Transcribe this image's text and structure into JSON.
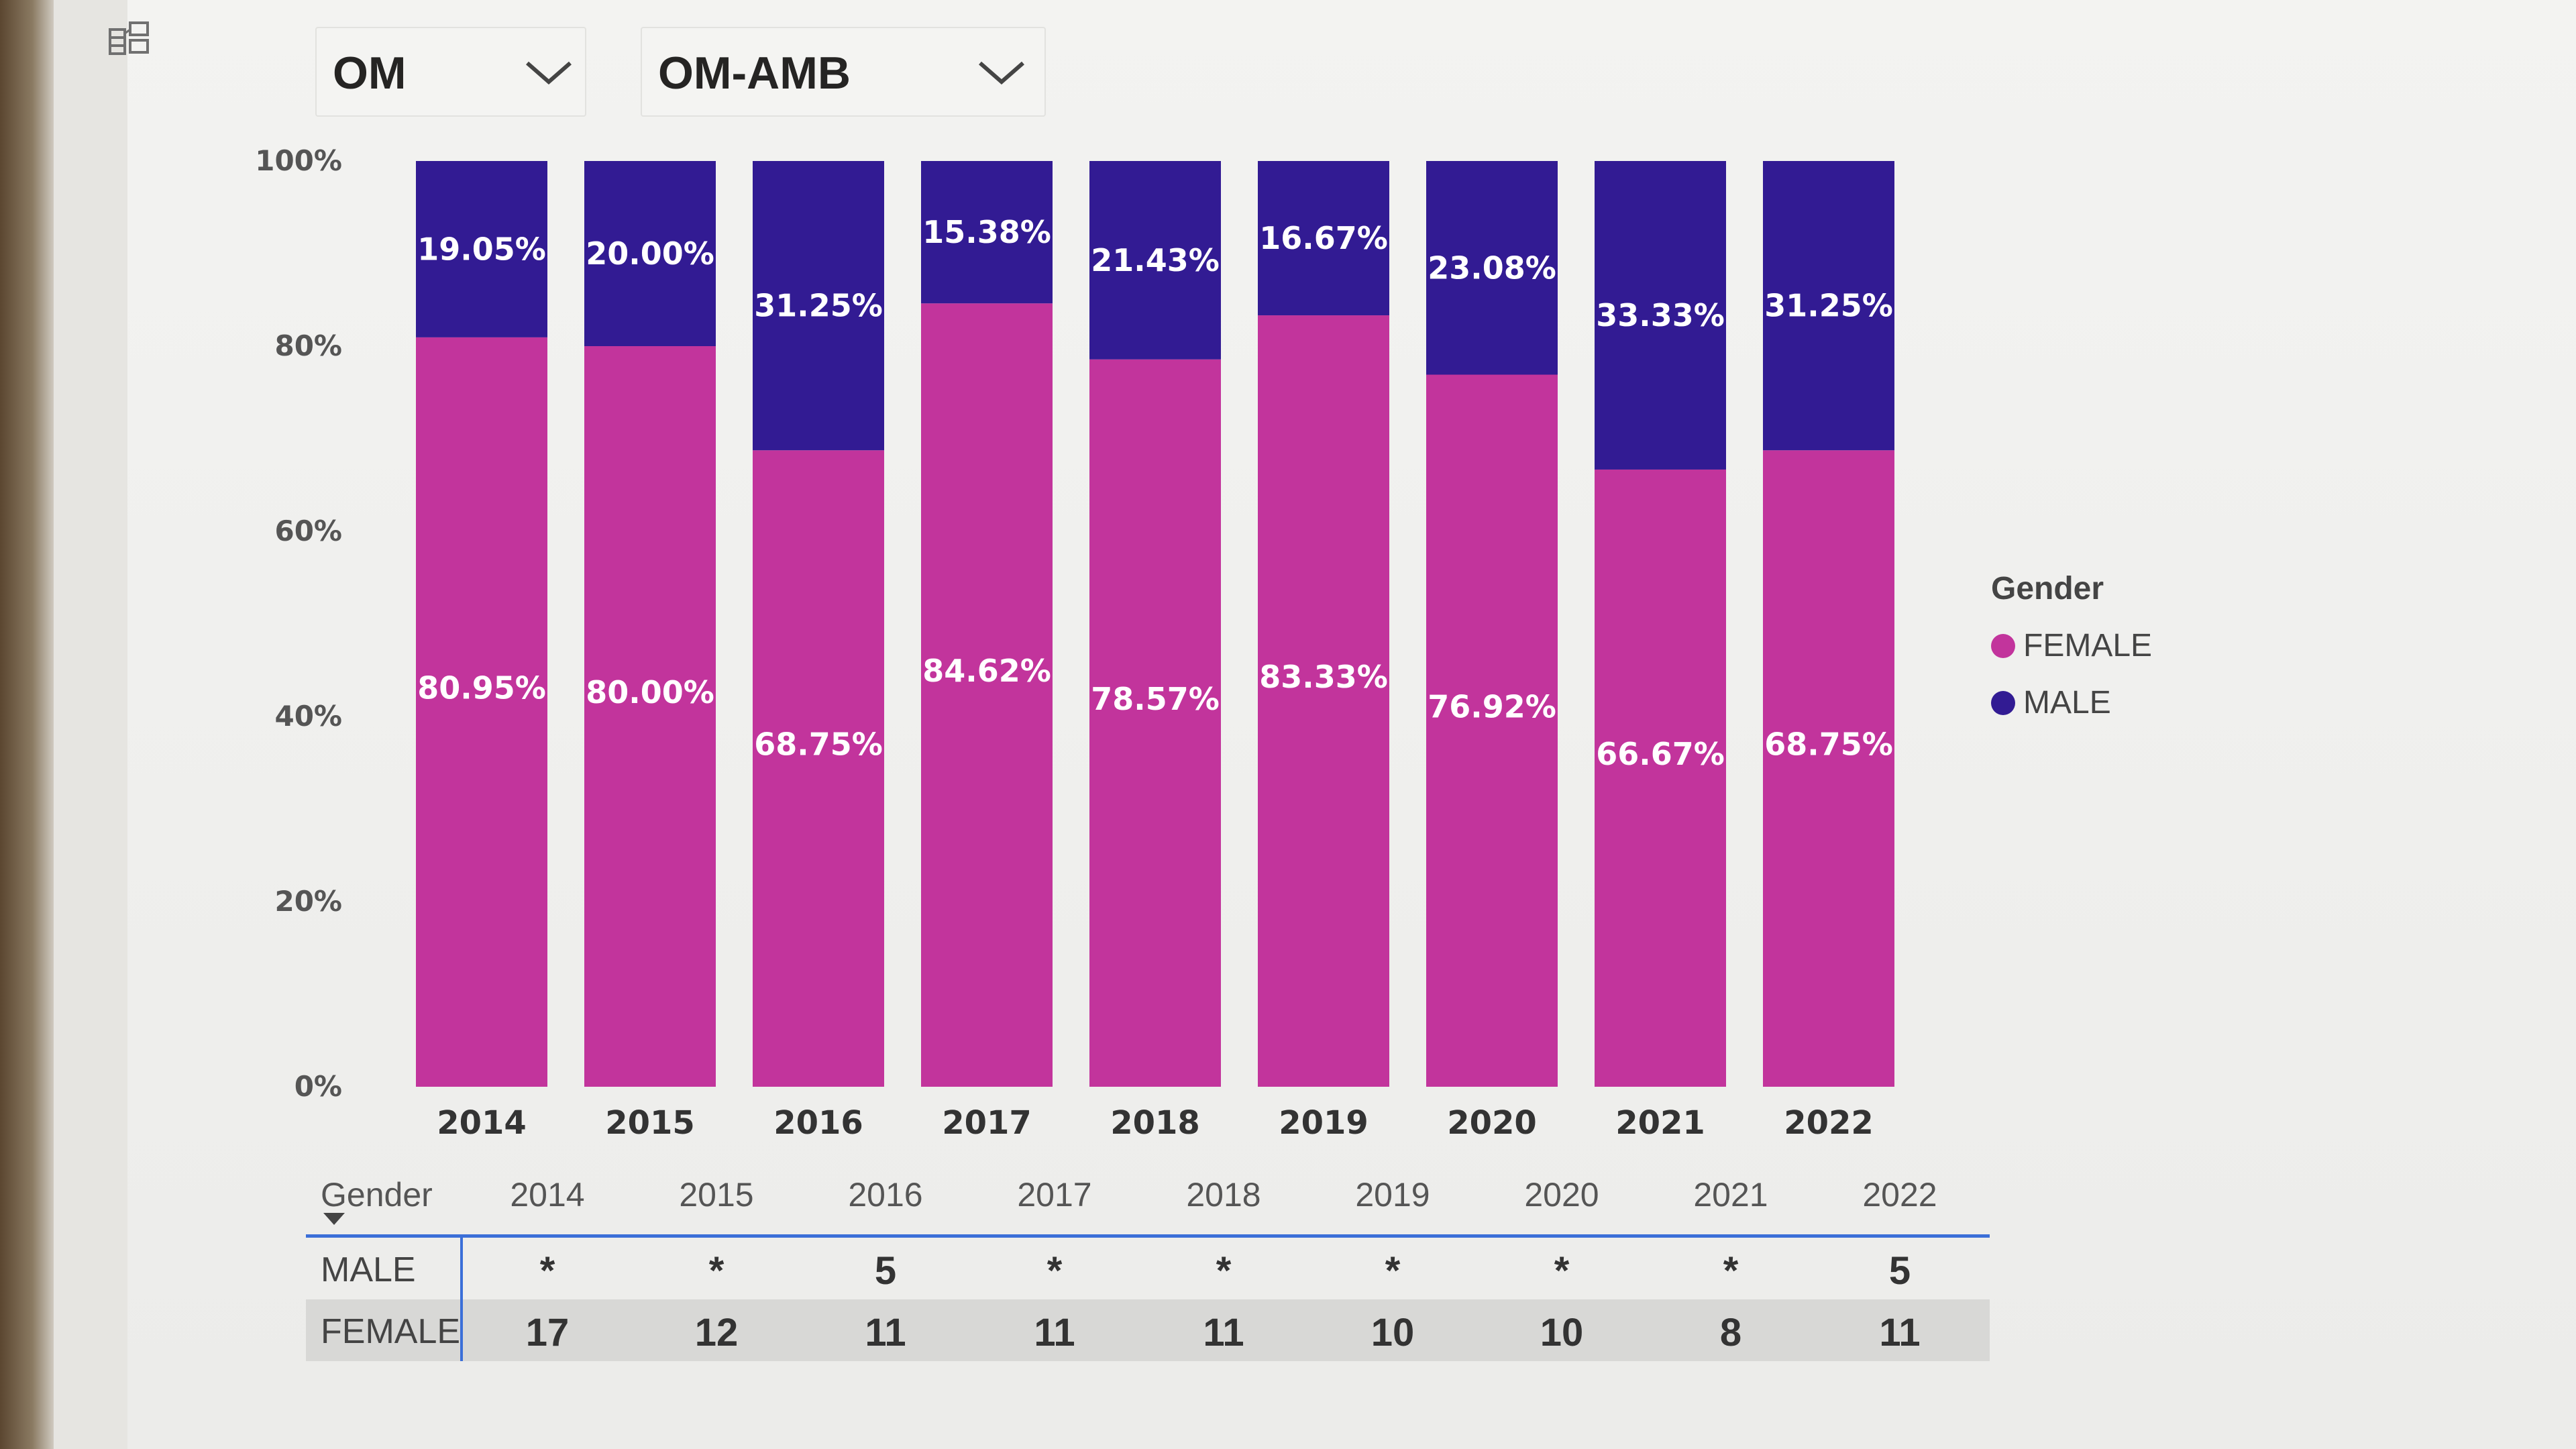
{
  "filters": {
    "division": {
      "value": "OM"
    },
    "branch": {
      "value": "OM-AMB"
    }
  },
  "colors": {
    "female": "#c2349c",
    "male": "#321b93"
  },
  "chart_data": {
    "type": "bar",
    "stacked": "100%",
    "categories": [
      "2014",
      "2015",
      "2016",
      "2017",
      "2018",
      "2019",
      "2020",
      "2021",
      "2022"
    ],
    "series": [
      {
        "name": "FEMALE",
        "values": [
          80.95,
          80.0,
          68.75,
          84.62,
          78.57,
          83.33,
          76.92,
          66.67,
          68.75
        ],
        "labels": [
          "80.95%",
          "80.00%",
          "68.75%",
          "84.62%",
          "78.57%",
          "83.33%",
          "76.92%",
          "66.67%",
          "68.75%"
        ]
      },
      {
        "name": "MALE",
        "values": [
          19.05,
          20.0,
          31.25,
          15.38,
          21.43,
          16.67,
          23.08,
          33.33,
          31.25
        ],
        "labels": [
          "19.05%",
          "20.00%",
          "31.25%",
          "15.38%",
          "21.43%",
          "16.67%",
          "23.08%",
          "33.33%",
          "31.25%"
        ]
      }
    ],
    "y_ticks": [
      "0%",
      "20%",
      "40%",
      "60%",
      "80%",
      "100%"
    ],
    "ylim": [
      0,
      100
    ],
    "legend": {
      "title": "Gender",
      "position": "right"
    }
  },
  "table": {
    "corner": "Gender",
    "columns": [
      "2014",
      "2015",
      "2016",
      "2017",
      "2018",
      "2019",
      "2020",
      "2021",
      "2022"
    ],
    "rows": [
      {
        "label": "MALE",
        "values": [
          "*",
          "*",
          "5",
          "*",
          "*",
          "*",
          "*",
          "*",
          "5"
        ]
      },
      {
        "label": "FEMALE",
        "values": [
          "17",
          "12",
          "11",
          "11",
          "11",
          "10",
          "10",
          "8",
          "11"
        ]
      }
    ]
  }
}
